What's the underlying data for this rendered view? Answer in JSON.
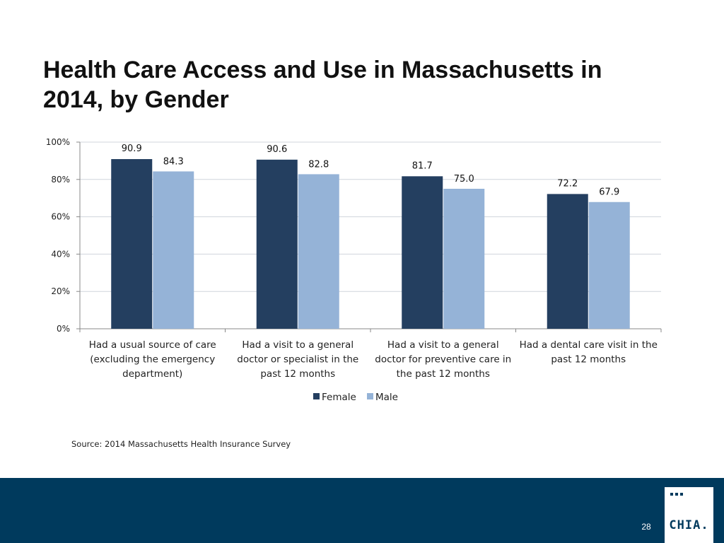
{
  "slide": {
    "title_line1": "Health Care Access and Use in Massachusetts in",
    "title_line2": "2014, by Gender",
    "source": "Source:  2014 Massachusetts Health Insurance Survey",
    "page_number": "28",
    "logo_text": "CHIA."
  },
  "colors": {
    "female": "#243f60",
    "male": "#95b3d7",
    "footer": "#003a5d"
  },
  "chart_data": {
    "type": "bar",
    "title": "",
    "xlabel": "",
    "ylabel": "",
    "ylim": [
      0,
      100
    ],
    "yticks": [
      0,
      20,
      40,
      60,
      80,
      100
    ],
    "ytick_labels": [
      "0%",
      "20%",
      "40%",
      "60%",
      "80%",
      "100%"
    ],
    "grid": true,
    "legend_position": "bottom",
    "categories": [
      [
        "Had a usual source of care",
        "(excluding the emergency",
        "department)"
      ],
      [
        "Had a visit to a general",
        "doctor or specialist in the",
        "past 12 months"
      ],
      [
        "Had a visit to a general",
        "doctor for preventive care in",
        "the past 12 months"
      ],
      [
        "Had a dental care visit in the",
        "past 12 months"
      ]
    ],
    "series": [
      {
        "name": "Female",
        "values": [
          90.9,
          90.6,
          81.7,
          72.2
        ],
        "labels": [
          "90.9",
          "90.6",
          "81.7",
          "72.2"
        ]
      },
      {
        "name": "Male",
        "values": [
          84.3,
          82.8,
          75.0,
          67.9
        ],
        "labels": [
          "84.3",
          "82.8",
          "75.0",
          "67.9"
        ]
      }
    ]
  }
}
